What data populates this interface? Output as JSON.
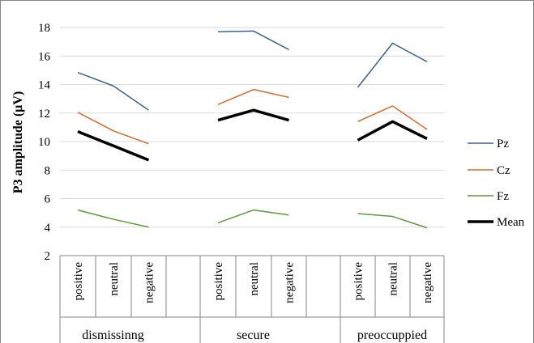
{
  "chart_data": {
    "type": "line",
    "title": "",
    "xlabel": "",
    "ylabel": "P3 amplitude (µV)",
    "ylim": [
      2,
      18
    ],
    "y_ticks": [
      "2",
      "4",
      "6",
      "8",
      "10",
      "12",
      "14",
      "16",
      "18"
    ],
    "grid": true,
    "legend_position": "right",
    "groups": [
      {
        "label": "dismissinng",
        "categories": [
          "positive",
          "neutral",
          "negative"
        ]
      },
      {
        "label": "secure",
        "categories": [
          "positive",
          "neutral",
          "negative"
        ]
      },
      {
        "label": "preoccuppied",
        "categories": [
          "positive",
          "neutral",
          "negative"
        ]
      }
    ],
    "series": [
      {
        "name": "Pz",
        "color": "#3b6390",
        "line_width": 1.5,
        "values": [
          [
            14.85,
            13.9,
            12.2
          ],
          [
            17.7,
            17.75,
            16.45
          ],
          [
            13.8,
            16.9,
            15.6
          ]
        ]
      },
      {
        "name": "Cz",
        "color": "#d9692b",
        "line_width": 1.5,
        "values": [
          [
            12.05,
            10.75,
            9.85
          ],
          [
            12.6,
            13.65,
            13.1
          ],
          [
            11.4,
            12.5,
            10.85
          ]
        ]
      },
      {
        "name": "Fz",
        "color": "#5e9a3c",
        "line_width": 1.5,
        "values": [
          [
            5.2,
            4.55,
            4.0
          ],
          [
            4.3,
            5.2,
            4.85
          ],
          [
            4.95,
            4.75,
            3.95
          ]
        ]
      },
      {
        "name": "Mean",
        "color": "#000000",
        "line_width": 3.5,
        "values": [
          [
            10.7,
            9.7,
            8.7
          ],
          [
            11.5,
            12.2,
            11.5
          ],
          [
            10.1,
            11.4,
            10.2
          ]
        ]
      }
    ]
  }
}
